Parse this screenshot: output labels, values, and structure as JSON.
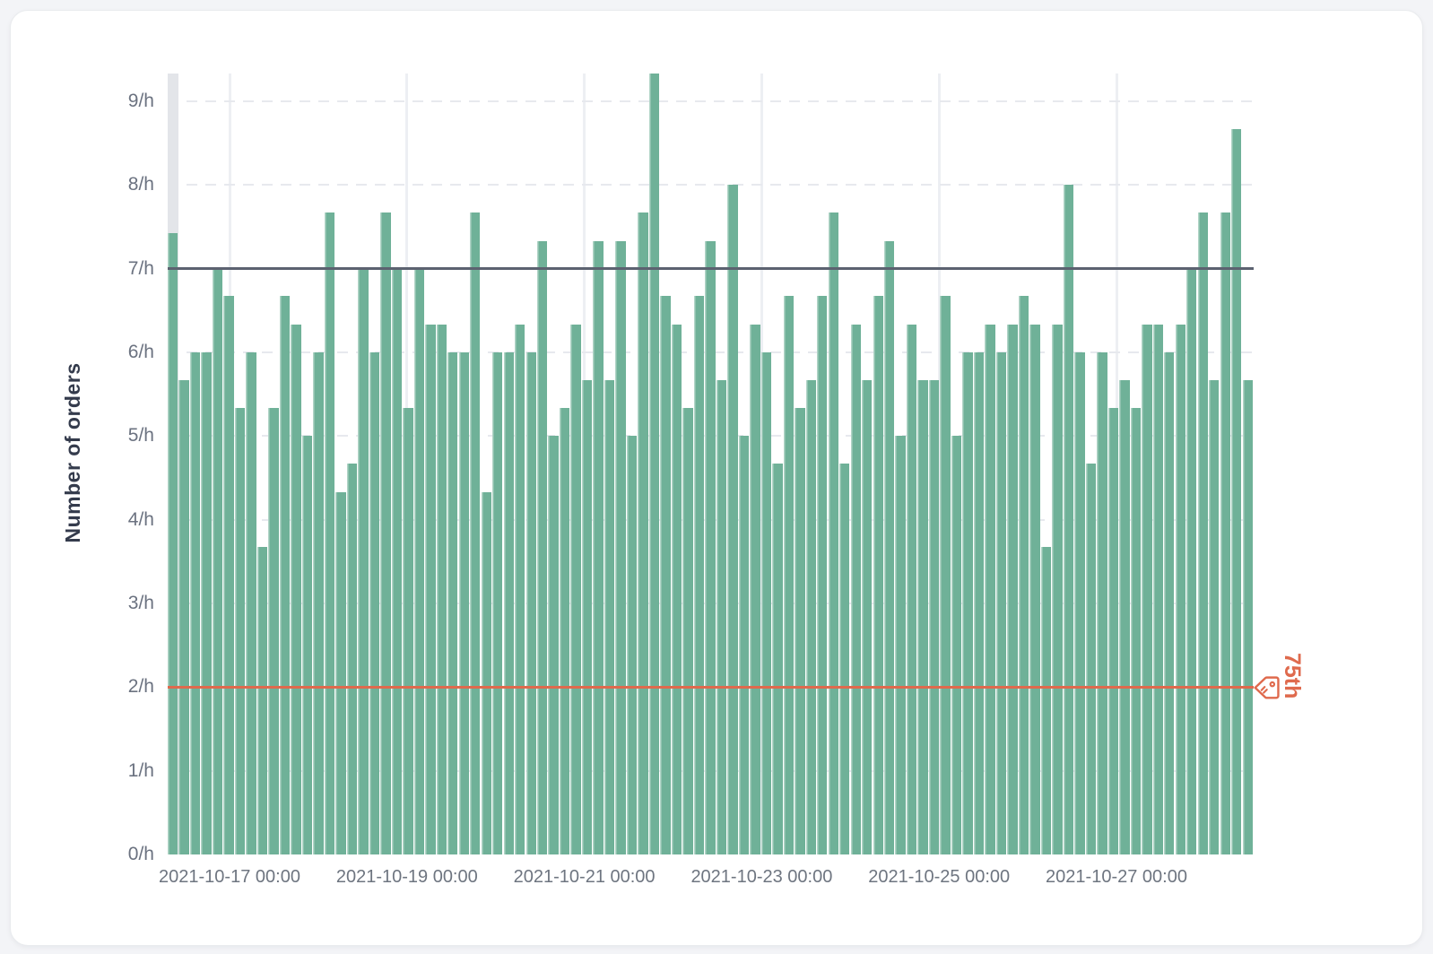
{
  "card": {},
  "chart_data": {
    "type": "bar",
    "title": "",
    "ylabel": "Number of orders",
    "xlabel": "",
    "ylim": [
      0,
      9.33
    ],
    "grid": true,
    "bar_color": "#6fb198",
    "highlighted_bar_index": 0,
    "highlight_color": "#e3e5e9",
    "y_ticks": [
      "0/h",
      "1/h",
      "2/h",
      "3/h",
      "4/h",
      "5/h",
      "6/h",
      "7/h",
      "8/h",
      "9/h"
    ],
    "x_ticks": [
      "2021-10-17 00:00",
      "2021-10-19 00:00",
      "2021-10-21 00:00",
      "2021-10-23 00:00",
      "2021-10-25 00:00",
      "2021-10-27 00:00"
    ],
    "values": [
      7.42,
      5.67,
      6,
      6,
      7,
      6.67,
      5.33,
      6,
      3.67,
      5.33,
      6.67,
      6.33,
      5,
      6,
      7.67,
      4.33,
      4.67,
      7,
      6,
      7.67,
      7,
      5.33,
      7,
      6.33,
      6.33,
      6,
      6,
      7.67,
      4.33,
      6,
      6,
      6.33,
      6,
      7.33,
      5,
      5.33,
      6.33,
      5.67,
      7.33,
      5.67,
      7.33,
      5,
      7.67,
      9.33,
      6.67,
      6.33,
      5.33,
      6.67,
      7.33,
      5.67,
      8,
      5,
      6.33,
      6,
      4.67,
      6.67,
      5.33,
      5.67,
      6.67,
      7.67,
      4.67,
      6.33,
      5.67,
      6.67,
      7.33,
      5,
      6.33,
      5.67,
      5.67,
      6.67,
      5,
      6,
      6,
      6.33,
      6,
      6.33,
      6.67,
      6.33,
      3.67,
      6.33,
      8,
      6,
      4.67,
      6,
      5.33,
      5.67,
      5.33,
      6.33,
      6.33,
      6,
      6.33,
      7,
      7.67,
      5.67,
      7.67,
      8.67,
      5.67
    ],
    "reference_lines": [
      {
        "value": 7,
        "label": "",
        "color": "#5c6270"
      },
      {
        "value": 2,
        "label": "75th",
        "color": "#df6a4d",
        "icon": "tag-icon"
      }
    ]
  }
}
